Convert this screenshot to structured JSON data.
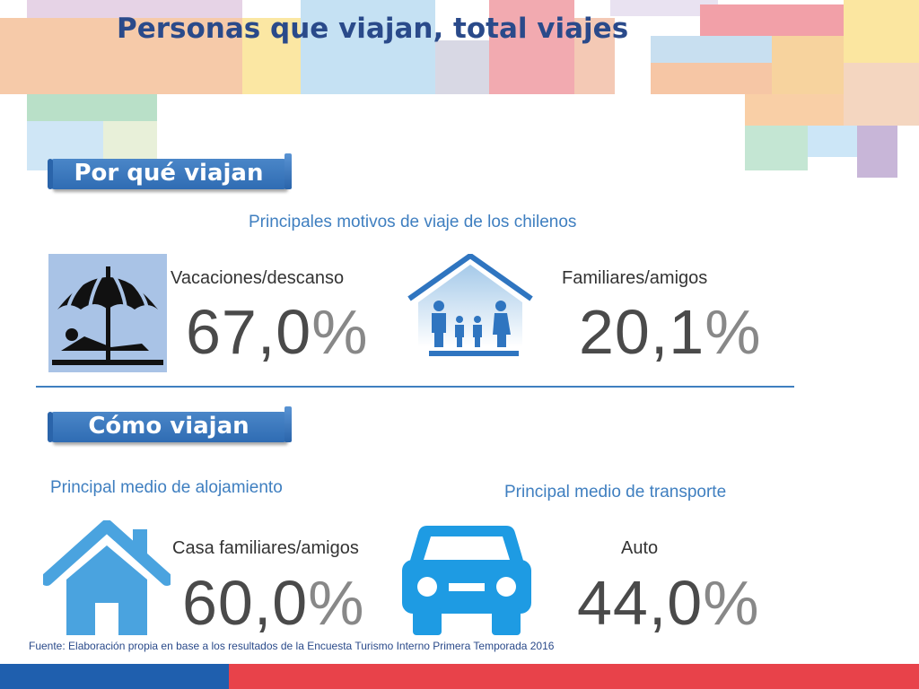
{
  "title": "Personas que viajan, total viajes",
  "sections": {
    "why": {
      "label": "Por qué viajan",
      "subheading": "Principales motivos de viaje de los chilenos",
      "items": [
        {
          "label": "Vacaciones/descanso",
          "number": "67,0",
          "sign": "%",
          "icon": "beach-umbrella-icon"
        },
        {
          "label": "Familiares/amigos",
          "number": "20,1",
          "sign": "%",
          "icon": "family-home-icon"
        }
      ]
    },
    "how": {
      "label": "Cómo viajan",
      "lodging": {
        "subheading": "Principal medio de alojamiento",
        "label": "Casa familiares/amigos",
        "number": "60,0",
        "sign": "%",
        "icon": "house-icon"
      },
      "transport": {
        "subheading": "Principal medio de transporte",
        "label": "Auto",
        "number": "44,0",
        "sign": "%",
        "icon": "car-icon"
      }
    }
  },
  "source": "Fuente: Elaboración propia en base a los resultados de la Encuesta Turismo Interno Primera Temporada 2016",
  "colors": {
    "accent_blue": "#2f6cb3",
    "title_blue": "#2a4a8a",
    "footer_blue": "#1f5fae",
    "footer_red": "#e8424a"
  }
}
